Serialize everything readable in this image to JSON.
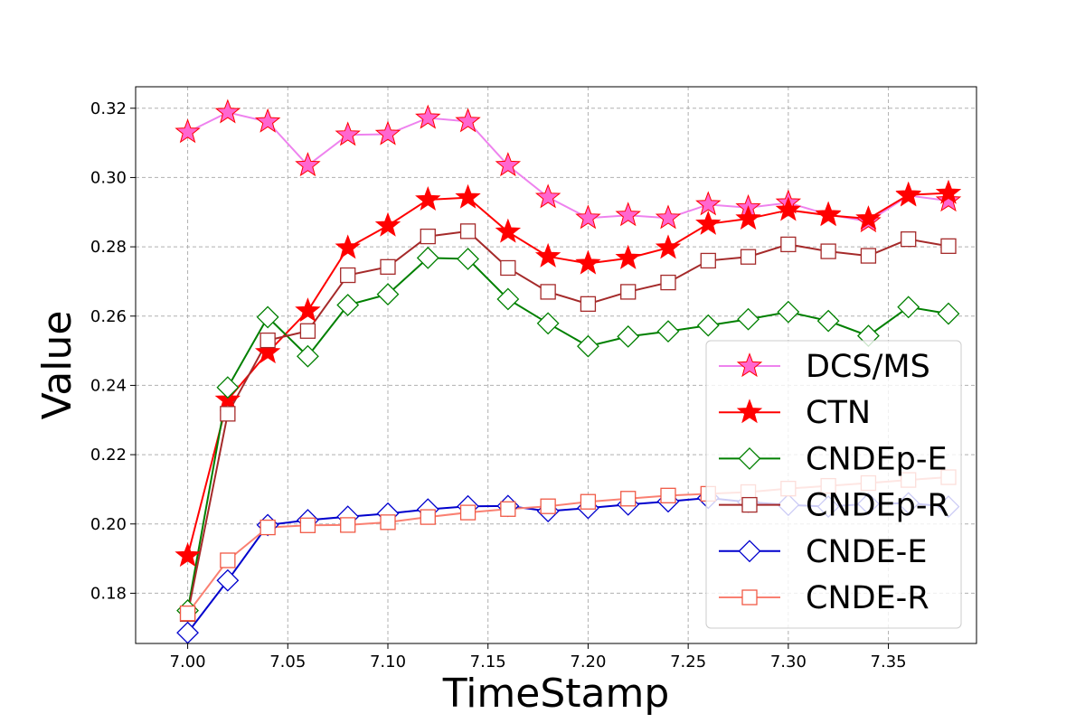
{
  "chart_data": {
    "type": "line",
    "title": "",
    "xlabel": "TimeStamp",
    "ylabel": "Value",
    "xlim": [
      6.974,
      7.394
    ],
    "ylim": [
      0.1655,
      0.3262
    ],
    "x_ticks": [
      "7.00",
      "7.05",
      "7.10",
      "7.15",
      "7.20",
      "7.25",
      "7.30",
      "7.35"
    ],
    "y_ticks": [
      "0.18",
      "0.20",
      "0.22",
      "0.24",
      "0.26",
      "0.28",
      "0.30",
      "0.32"
    ],
    "grid": true,
    "legend_position": "lower-right",
    "x": [
      7.0,
      7.02,
      7.04,
      7.06,
      7.08,
      7.1,
      7.12,
      7.14,
      7.16,
      7.18,
      7.2,
      7.22,
      7.24,
      7.26,
      7.28,
      7.3,
      7.32,
      7.34,
      7.36,
      7.38
    ],
    "series": [
      {
        "name": "DCS/MS",
        "line_color": "#ee82ee",
        "marker": "star",
        "marker_face": "#ff66d0",
        "marker_edge": "#ff0000",
        "values": [
          0.3131,
          0.3188,
          0.3161,
          0.3035,
          0.3123,
          0.3125,
          0.3172,
          0.3162,
          0.3035,
          0.2943,
          0.2883,
          0.2891,
          0.2883,
          0.2922,
          0.2913,
          0.2927,
          0.2893,
          0.2873,
          0.2948,
          0.2933
        ]
      },
      {
        "name": "CTN",
        "line_color": "#ff0000",
        "marker": "star",
        "marker_face": "#ff0000",
        "marker_edge": "#ff0000",
        "values": [
          0.1908,
          0.2358,
          0.2495,
          0.2615,
          0.2797,
          0.2861,
          0.2936,
          0.2942,
          0.2843,
          0.2772,
          0.2752,
          0.2767,
          0.2797,
          0.2866,
          0.2881,
          0.2906,
          0.2891,
          0.2881,
          0.295,
          0.2955
        ]
      },
      {
        "name": "CNDEp-E",
        "line_color": "#008000",
        "marker": "diamond",
        "marker_face": "#ffffff",
        "marker_edge": "#008000",
        "values": [
          0.175,
          0.2394,
          0.2597,
          0.2484,
          0.2632,
          0.2663,
          0.2768,
          0.2765,
          0.2649,
          0.2579,
          0.2513,
          0.2541,
          0.2556,
          0.2573,
          0.2591,
          0.2612,
          0.2586,
          0.2543,
          0.2626,
          0.2607
        ]
      },
      {
        "name": "CNDEp-R",
        "line_color": "#a52a2a",
        "marker": "square",
        "marker_face": "#ffffff",
        "marker_edge": "#a52a2a",
        "values": [
          0.174,
          0.2318,
          0.253,
          0.2557,
          0.2718,
          0.2742,
          0.283,
          0.2845,
          0.2739,
          0.267,
          0.2635,
          0.267,
          0.2697,
          0.276,
          0.2771,
          0.2807,
          0.2787,
          0.2774,
          0.2822,
          0.2802
        ]
      },
      {
        "name": "CNDE-E",
        "line_color": "#0000cd",
        "marker": "diamond",
        "marker_face": "#ffffff",
        "marker_edge": "#0000cd",
        "values": [
          0.1686,
          0.1837,
          0.1997,
          0.2011,
          0.2021,
          0.203,
          0.2042,
          0.2051,
          0.2052,
          0.2037,
          0.2046,
          0.2056,
          0.2065,
          0.2075,
          0.2063,
          0.2055,
          0.205,
          0.2058,
          0.206,
          0.205
        ]
      },
      {
        "name": "CNDE-R",
        "line_color": "#fa8072",
        "marker": "square",
        "marker_face": "#ffffff",
        "marker_edge": "#f05a46",
        "values": [
          0.1742,
          0.1895,
          0.199,
          0.1996,
          0.1997,
          0.2005,
          0.202,
          0.2033,
          0.2043,
          0.2051,
          0.2064,
          0.2073,
          0.2082,
          0.2087,
          0.2092,
          0.2102,
          0.211,
          0.2118,
          0.2127,
          0.2135
        ]
      }
    ]
  }
}
